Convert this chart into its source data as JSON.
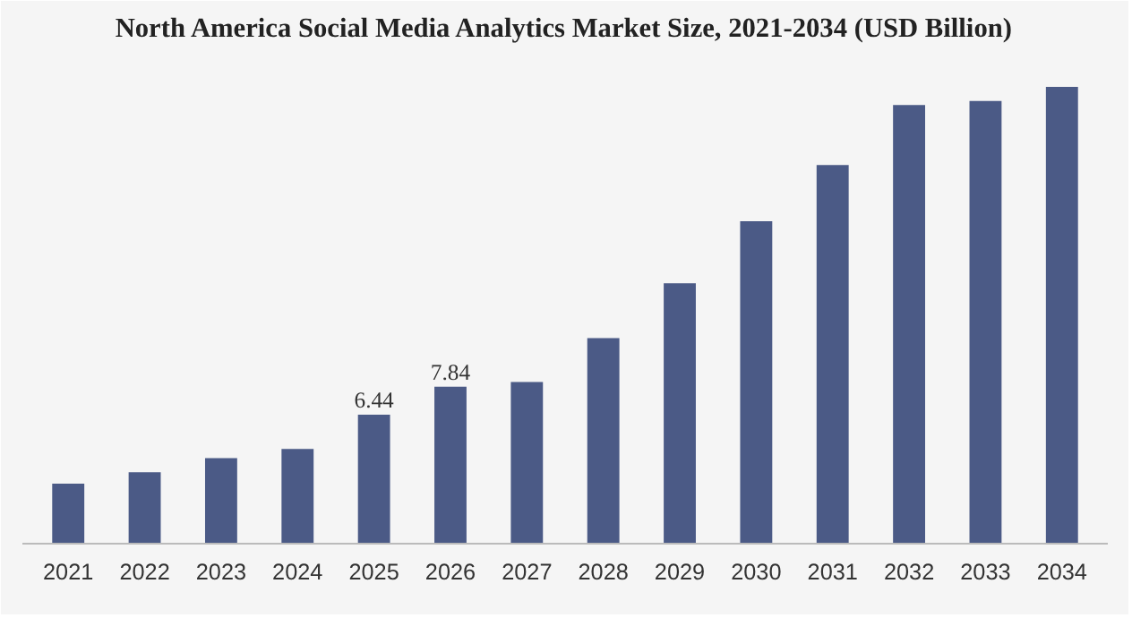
{
  "chart_data": {
    "type": "bar",
    "title": "North America Social Media Analytics Market Size, 2021-2034 (USD Billion)",
    "categories": [
      "2021",
      "2022",
      "2023",
      "2024",
      "2025",
      "2026",
      "2027",
      "2028",
      "2029",
      "2030",
      "2031",
      "2032",
      "2033",
      "2034"
    ],
    "values": [
      3.0,
      3.57,
      4.27,
      4.73,
      6.44,
      7.84,
      8.07,
      10.26,
      13.0,
      16.1,
      18.9,
      21.9,
      22.1,
      22.8
    ],
    "value_labels": [
      null,
      null,
      null,
      null,
      "6.44",
      "7.84",
      null,
      null,
      null,
      null,
      null,
      null,
      null,
      null
    ],
    "color": "#4b5a86",
    "ylim": [
      0,
      24.5
    ],
    "tick_labels": "x"
  }
}
